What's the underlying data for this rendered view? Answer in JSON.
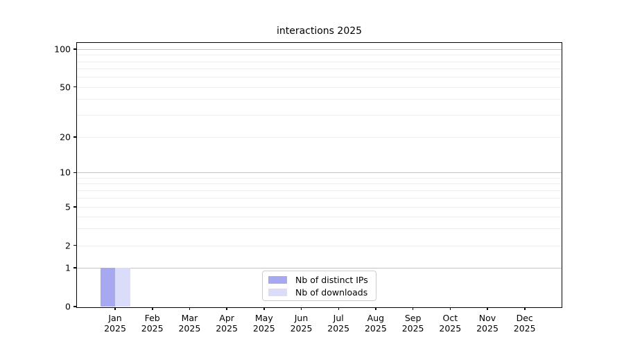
{
  "chart_data": {
    "type": "bar",
    "title": "interactions 2025",
    "categories": [
      {
        "month": "Jan",
        "year": "2025"
      },
      {
        "month": "Feb",
        "year": "2025"
      },
      {
        "month": "Mar",
        "year": "2025"
      },
      {
        "month": "Apr",
        "year": "2025"
      },
      {
        "month": "May",
        "year": "2025"
      },
      {
        "month": "Jun",
        "year": "2025"
      },
      {
        "month": "Jul",
        "year": "2025"
      },
      {
        "month": "Aug",
        "year": "2025"
      },
      {
        "month": "Sep",
        "year": "2025"
      },
      {
        "month": "Oct",
        "year": "2025"
      },
      {
        "month": "Nov",
        "year": "2025"
      },
      {
        "month": "Dec",
        "year": "2025"
      }
    ],
    "series": [
      {
        "name": "Nb of distinct IPs",
        "color": "#a8a8f0",
        "values": [
          1,
          0,
          0,
          0,
          0,
          0,
          0,
          0,
          0,
          0,
          0,
          0
        ]
      },
      {
        "name": "Nb of downloads",
        "color": "#dbdcfa",
        "values": [
          1,
          0,
          0,
          0,
          0,
          0,
          0,
          0,
          0,
          0,
          0,
          0
        ]
      }
    ],
    "y_axis": {
      "scale": "log-like",
      "major_ticks": [
        100,
        50,
        20,
        10,
        5,
        2,
        1,
        0
      ],
      "minor_ticks": [
        90,
        80,
        70,
        60,
        40,
        30,
        9,
        8,
        7,
        6,
        4,
        3
      ],
      "ylim": [
        0,
        110
      ]
    },
    "xlabel": "",
    "ylabel": "",
    "grid": "on",
    "legend_position": "lower center"
  },
  "colors": {
    "bar_distinct_ips": "#a8a8f0",
    "bar_downloads": "#dbdcfa",
    "major_grid": "#c3c3c3",
    "minor_grid": "#ededed",
    "spine": "#000000",
    "legend_border": "#cccccc",
    "background": "#ffffff"
  }
}
